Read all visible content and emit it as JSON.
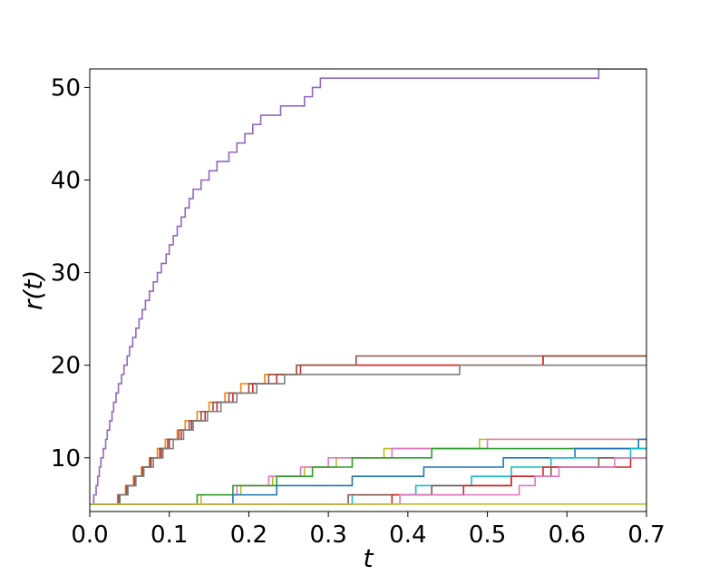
{
  "chart_data": {
    "type": "line",
    "title": "",
    "xlabel": "t",
    "ylabel": "r(t)",
    "xlim": [
      0.0,
      0.7
    ],
    "ylim": [
      4.2,
      52
    ],
    "xticks": [
      0.0,
      0.1,
      0.2,
      0.3,
      0.4,
      0.5,
      0.6,
      0.7
    ],
    "xtick_labels": [
      "0.0",
      "0.1",
      "0.2",
      "0.3",
      "0.4",
      "0.5",
      "0.6",
      "0.7"
    ],
    "yticks": [
      10,
      20,
      30,
      40,
      50
    ],
    "ytick_labels": [
      "10",
      "20",
      "30",
      "40",
      "50"
    ],
    "grid": false,
    "legend": "none",
    "step": true,
    "series": [
      {
        "color": "#9467bd",
        "x": [
          0,
          0.005,
          0.008,
          0.01,
          0.012,
          0.014,
          0.017,
          0.02,
          0.022,
          0.025,
          0.028,
          0.03,
          0.033,
          0.036,
          0.04,
          0.043,
          0.047,
          0.05,
          0.054,
          0.058,
          0.062,
          0.066,
          0.07,
          0.075,
          0.08,
          0.085,
          0.09,
          0.096,
          0.1,
          0.105,
          0.11,
          0.115,
          0.12,
          0.125,
          0.13,
          0.14,
          0.15,
          0.16,
          0.175,
          0.185,
          0.195,
          0.205,
          0.215,
          0.24,
          0.27,
          0.28,
          0.29,
          0.64
        ],
        "y": [
          5,
          6,
          7,
          8,
          9,
          10,
          11,
          12,
          13,
          14,
          15,
          16,
          17,
          18,
          19,
          20,
          21,
          22,
          23,
          24,
          25,
          26,
          27,
          28,
          29,
          30,
          31,
          32,
          33,
          34,
          35,
          36,
          37,
          38,
          39,
          40,
          41,
          42,
          43,
          44,
          45,
          46,
          47,
          48,
          49,
          50,
          51,
          52
        ]
      },
      {
        "color": "#ff7f0e",
        "x": [
          0,
          0.035,
          0.045,
          0.055,
          0.065,
          0.075,
          0.085,
          0.095,
          0.11,
          0.12,
          0.135,
          0.15,
          0.17,
          0.19,
          0.22,
          0.26,
          0.57
        ],
        "y": [
          5,
          6,
          7,
          8,
          9,
          10,
          11,
          12,
          13,
          14,
          15,
          16,
          17,
          18,
          19,
          20,
          21
        ]
      },
      {
        "color": "#d62728",
        "x": [
          0,
          0.037,
          0.047,
          0.057,
          0.067,
          0.077,
          0.09,
          0.1,
          0.115,
          0.128,
          0.145,
          0.16,
          0.18,
          0.205,
          0.235,
          0.265,
          0.57
        ],
        "y": [
          5,
          6,
          7,
          8,
          9,
          10,
          11,
          12,
          13,
          14,
          15,
          16,
          17,
          18,
          19,
          20,
          21
        ]
      },
      {
        "color": "#8c564b",
        "x": [
          0,
          0.036,
          0.046,
          0.056,
          0.066,
          0.076,
          0.088,
          0.098,
          0.112,
          0.125,
          0.14,
          0.155,
          0.175,
          0.2,
          0.225,
          0.26,
          0.335
        ],
        "y": [
          5,
          6,
          7,
          8,
          9,
          10,
          11,
          12,
          13,
          14,
          15,
          16,
          17,
          18,
          19,
          20,
          21
        ]
      },
      {
        "color": "#7f7f7f",
        "x": [
          0,
          0.038,
          0.048,
          0.058,
          0.068,
          0.08,
          0.092,
          0.105,
          0.118,
          0.13,
          0.148,
          0.165,
          0.185,
          0.21,
          0.245,
          0.465
        ],
        "y": [
          5,
          6,
          7,
          8,
          9,
          10,
          11,
          12,
          13,
          14,
          15,
          16,
          17,
          18,
          19,
          20
        ]
      },
      {
        "color": "#bcbd22",
        "x": [
          0,
          0.14,
          0.19,
          0.23,
          0.27,
          0.31,
          0.37,
          0.49
        ],
        "y": [
          5,
          6,
          7,
          8,
          9,
          10,
          11,
          12
        ]
      },
      {
        "color": "#e377c2",
        "x": [
          0,
          0.135,
          0.185,
          0.225,
          0.265,
          0.3,
          0.38,
          0.5
        ],
        "y": [
          5,
          6,
          7,
          8,
          9,
          10,
          11,
          12
        ]
      },
      {
        "color": "#2ca02c",
        "x": [
          0,
          0.135,
          0.18,
          0.235,
          0.28,
          0.33,
          0.43
        ],
        "y": [
          5,
          6,
          7,
          8,
          9,
          10,
          11
        ]
      },
      {
        "color": "#1f77b4",
        "x": [
          0,
          0.18,
          0.235,
          0.33,
          0.42,
          0.52,
          0.61,
          0.69
        ],
        "y": [
          5,
          6,
          7,
          8,
          9,
          10,
          11,
          12
        ]
      },
      {
        "color": "#17becf",
        "x": [
          0,
          0.33,
          0.41,
          0.48,
          0.53,
          0.58,
          0.68
        ],
        "y": [
          5,
          6,
          7,
          8,
          9,
          10,
          11
        ]
      },
      {
        "color": "#8c564b",
        "x": [
          0,
          0.325,
          0.43,
          0.53,
          0.58,
          0.64
        ],
        "y": [
          5,
          6,
          7,
          8,
          9,
          10
        ]
      },
      {
        "color": "#d62728",
        "x": [
          0,
          0.38,
          0.47,
          0.53,
          0.57,
          0.68
        ],
        "y": [
          5,
          6,
          7,
          8,
          9,
          10
        ]
      },
      {
        "color": "#e377c2",
        "x": [
          0,
          0.39,
          0.54,
          0.56,
          0.59,
          0.66
        ],
        "y": [
          5,
          6,
          7,
          8,
          9,
          10
        ]
      },
      {
        "color": "#bcbd22",
        "x": [
          0
        ],
        "y": [
          5
        ]
      }
    ]
  }
}
